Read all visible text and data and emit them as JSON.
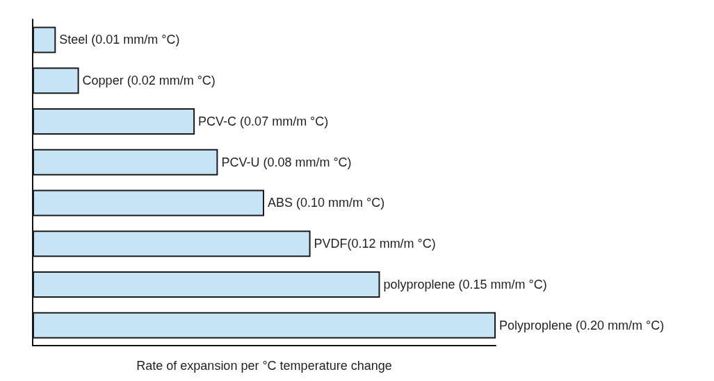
{
  "chart_data": {
    "type": "bar",
    "orientation": "horizontal",
    "xlabel": "Rate of expansion per °C temperature change",
    "categories": [
      null,
      null,
      null,
      null,
      null,
      null,
      null,
      null
    ],
    "values": [
      0.01,
      0.02,
      0.07,
      0.08,
      0.1,
      0.12,
      0.15,
      0.2
    ],
    "value_labels": [
      "Steel (0.01 mm/m °C)",
      "Copper (0.02 mm/m °C)",
      "PCV-C (0.07 mm/m °C)",
      "PCV-U (0.08 mm/m °C)",
      "ABS (0.10 mm/m °C)",
      "PVDF(0.12 mm/m °C)",
      "polyproplene (0.15 mm/m °C)",
      "Polyproplene (0.20 mm/m °C)"
    ],
    "color": "#c6e4f6"
  }
}
